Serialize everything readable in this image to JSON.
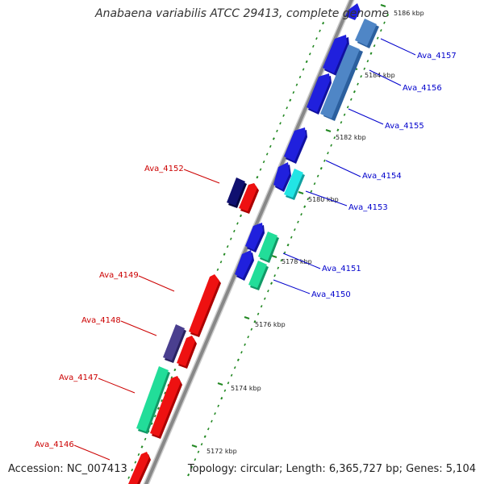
{
  "title": "Anabaena variabilis ATCC 29413, complete genome",
  "footer": {
    "accession": "Accession: NC_007413",
    "summary": "Topology: circular; Length: 6,365,727 bp; Genes: 5,104"
  },
  "colors": {
    "axis": "#888888",
    "tick": "#228822",
    "forward_label": "#0000cc",
    "reverse_label": "#cc0000"
  },
  "kbp_labels": [
    "5172 kbp",
    "5174 kbp",
    "5176 kbp",
    "5178 kbp",
    "5180 kbp",
    "5182 kbp",
    "5184 kbp",
    "5186 kbp"
  ],
  "genes": [
    {
      "name": "Ava_4157",
      "color": "#4f86c6"
    },
    {
      "name": "Ava_4156",
      "color": "#2020dd"
    },
    {
      "name": "Ava_4155",
      "color": "#2020dd"
    },
    {
      "name": "Ava_4154",
      "color": "#2020dd"
    },
    {
      "name": "Ava_4153",
      "color": "#22e5e5"
    },
    {
      "name": "Ava_4152",
      "color": "#101070"
    },
    {
      "name": "Ava_4151",
      "color": "#22dd99"
    },
    {
      "name": "Ava_4150",
      "color": "#2020dd"
    },
    {
      "name": "Ava_4149",
      "color": "#ee1111"
    },
    {
      "name": "Ava_4148",
      "color": "#4a3f8f"
    },
    {
      "name": "Ava_4147",
      "color": "#22dd99"
    },
    {
      "name": "Ava_4146",
      "color": "#ee1111"
    }
  ]
}
